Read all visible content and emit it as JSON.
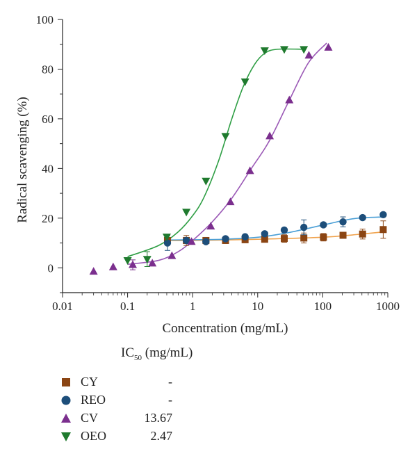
{
  "chart_data": {
    "type": "scatter",
    "x_scale": "log",
    "xlabel": "Concentration (mg/mL)",
    "ylabel": "Radical scavenging (%)",
    "xlim": [
      0.01,
      1000
    ],
    "ylim": [
      -10,
      100
    ],
    "x_ticks": [
      "0.01",
      "0.1",
      "1",
      "10",
      "100",
      "1000"
    ],
    "y_ticks": [
      "0",
      "20",
      "40",
      "60",
      "80",
      "100"
    ],
    "series": [
      {
        "name": "CY",
        "marker": "square",
        "color": "#8b4513",
        "fit_color": "#f0a24c",
        "x": [
          0.41,
          0.8,
          1.6,
          3.2,
          6.4,
          12.8,
          25.6,
          51.2,
          102.4,
          204.8,
          409.6,
          850
        ],
        "y": [
          11,
          11,
          11,
          11,
          11.3,
          11.5,
          11.8,
          12,
          12.3,
          13.1,
          13.6,
          15.4
        ],
        "err": [
          0,
          2,
          1,
          0,
          0,
          0,
          1.5,
          2,
          1.5,
          1,
          2,
          3.5
        ],
        "fit_x": [
          0.4,
          1,
          10,
          100,
          300,
          900
        ],
        "fit_y": [
          11,
          11,
          11.5,
          12.3,
          13.3,
          14.5
        ]
      },
      {
        "name": "REO",
        "marker": "circle",
        "color": "#1d4e7a",
        "fit_color": "#4a9fd6",
        "x": [
          0.41,
          0.8,
          1.6,
          3.2,
          6.4,
          12.8,
          25.6,
          51.2,
          102.4,
          204.8,
          409.6,
          850
        ],
        "y": [
          10,
          11,
          10.5,
          11.7,
          12.5,
          13.7,
          15.2,
          16.3,
          17.3,
          18.5,
          20.2,
          21.4
        ],
        "err": [
          3,
          1,
          0,
          0,
          0,
          0,
          0,
          3,
          0,
          2,
          0,
          0
        ],
        "fit_x": [
          0.4,
          1,
          3,
          10,
          30,
          100,
          300,
          900
        ],
        "fit_y": [
          11.2,
          11.3,
          11.5,
          12.3,
          14.2,
          17.2,
          19.8,
          20.5
        ]
      },
      {
        "name": "CV",
        "marker": "triangle-up",
        "color": "#7b2f8e",
        "fit_color": "#9b59b6",
        "ic50": "13.67",
        "x": [
          0.03,
          0.06,
          0.12,
          0.24,
          0.48,
          0.96,
          1.9,
          3.8,
          7.6,
          15.3,
          30.6,
          61.2,
          122
        ],
        "y": [
          -1.5,
          0.3,
          1.2,
          1.8,
          4.8,
          10.5,
          16.7,
          26.5,
          39,
          53,
          67.5,
          85.5,
          88.7
        ],
        "err": [
          0,
          0,
          2,
          0,
          0,
          0,
          0,
          0,
          0,
          0,
          0,
          0,
          0
        ],
        "fit_x": [
          0.1,
          0.3,
          0.6,
          1,
          2,
          4,
          8,
          15,
          30,
          60,
          115
        ],
        "fit_y": [
          1.4,
          3,
          6.5,
          11,
          18.5,
          28,
          40,
          51,
          67,
          82.5,
          90.5
        ]
      },
      {
        "name": "OEO",
        "marker": "triangle-down",
        "color": "#1f7a2e",
        "fit_color": "#2e9e44",
        "ic50": "2.47",
        "x": [
          0.1,
          0.2,
          0.4,
          0.8,
          1.6,
          3.2,
          6.4,
          12.8,
          25.6,
          51.2
        ],
        "y": [
          3,
          3.5,
          12.5,
          22.5,
          35,
          53,
          75,
          87.5,
          88,
          88
        ],
        "err": [
          0,
          3,
          0,
          0,
          0,
          0,
          0,
          0,
          0,
          0
        ],
        "fit_x": [
          0.1,
          0.3,
          0.6,
          1,
          1.5,
          2.5,
          4,
          6,
          9,
          13,
          20,
          50
        ],
        "fit_y": [
          4.5,
          9,
          14.5,
          21,
          28.5,
          43,
          60,
          73,
          82,
          86.5,
          88,
          88
        ]
      }
    ]
  },
  "legend": {
    "title_prefix": "IC",
    "title_sub": "50",
    "title_suffix": " (mg/mL)",
    "rows": [
      {
        "name": "CY",
        "value": "-"
      },
      {
        "name": "REO",
        "value": "-"
      },
      {
        "name": "CV",
        "value": "13.67"
      },
      {
        "name": "OEO",
        "value": "2.47"
      }
    ]
  }
}
